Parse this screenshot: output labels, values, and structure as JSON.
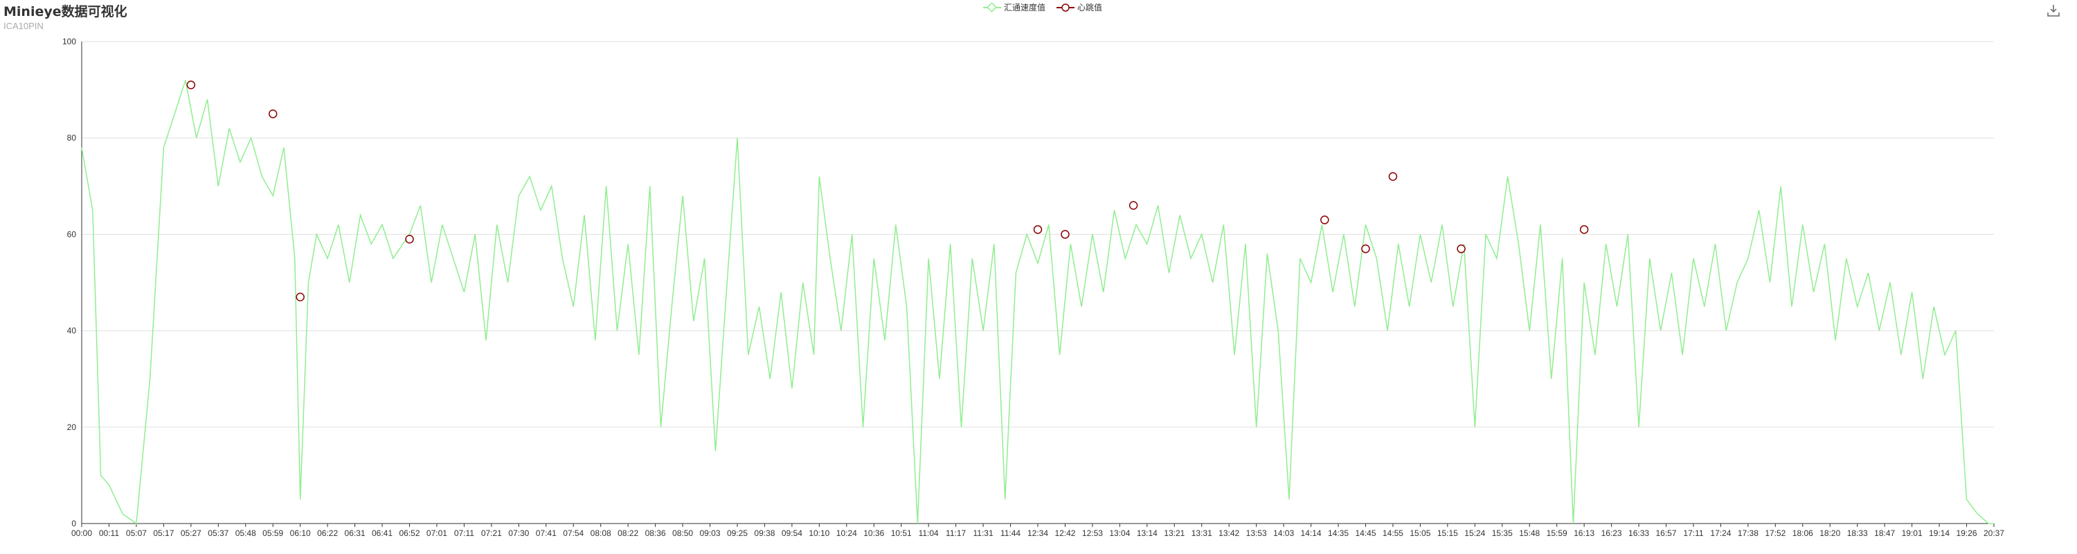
{
  "header": {
    "title": "Minieye数据可视化",
    "subtitle": "ICA10PIN"
  },
  "toolbar": {
    "download_icon": "download-icon"
  },
  "colors": {
    "speed": "#90ee90",
    "heartbeat": "#8b0000",
    "grid": "#e0e0e0",
    "axis": "#333333"
  },
  "chart_data": {
    "type": "line",
    "legend": [
      {
        "name": "汇通速度值",
        "symbol": "diamond",
        "color": "#90ee90"
      },
      {
        "name": "心跳值",
        "symbol": "circle",
        "color": "#8b0000"
      }
    ],
    "legend_placement": "top-center",
    "grid": true,
    "ylim": [
      0,
      100
    ],
    "yticks": [
      0,
      20,
      40,
      60,
      80,
      100
    ],
    "xticks": [
      "00:00",
      "00:11",
      "05:07",
      "05:17",
      "05:27",
      "05:37",
      "05:48",
      "05:59",
      "06:10",
      "06:22",
      "06:31",
      "06:41",
      "06:52",
      "07:01",
      "07:11",
      "07:21",
      "07:30",
      "07:41",
      "07:54",
      "08:08",
      "08:22",
      "08:36",
      "08:50",
      "09:03",
      "09:25",
      "09:38",
      "09:54",
      "10:10",
      "10:24",
      "10:36",
      "10:51",
      "11:04",
      "11:17",
      "11:31",
      "11:44",
      "12:34",
      "12:42",
      "12:53",
      "13:04",
      "13:14",
      "13:21",
      "13:31",
      "13:42",
      "13:53",
      "14:03",
      "14:14",
      "14:35",
      "14:45",
      "14:55",
      "15:05",
      "15:15",
      "15:24",
      "15:35",
      "15:48",
      "15:59",
      "16:13",
      "16:23",
      "16:33",
      "16:57",
      "17:11",
      "17:24",
      "17:38",
      "17:52",
      "18:06",
      "18:20",
      "18:33",
      "18:47",
      "19:01",
      "19:14",
      "19:26",
      "20:37"
    ],
    "series": [
      {
        "name": "汇通速度值",
        "style": "line",
        "points": [
          [
            0,
            78
          ],
          [
            0.4,
            65
          ],
          [
            0.7,
            10
          ],
          [
            1,
            8
          ],
          [
            1.5,
            2
          ],
          [
            2,
            0
          ],
          [
            2.5,
            30
          ],
          [
            3,
            78
          ],
          [
            3.4,
            85
          ],
          [
            3.8,
            92
          ],
          [
            4.2,
            80
          ],
          [
            4.6,
            88
          ],
          [
            5,
            70
          ],
          [
            5.4,
            82
          ],
          [
            5.8,
            75
          ],
          [
            6.2,
            80
          ],
          [
            6.6,
            72
          ],
          [
            7,
            68
          ],
          [
            7.4,
            78
          ],
          [
            7.8,
            55
          ],
          [
            8,
            5
          ],
          [
            8.3,
            50
          ],
          [
            8.6,
            60
          ],
          [
            9,
            55
          ],
          [
            9.4,
            62
          ],
          [
            9.8,
            50
          ],
          [
            10.2,
            64
          ],
          [
            10.6,
            58
          ],
          [
            11,
            62
          ],
          [
            11.4,
            55
          ],
          [
            12,
            60
          ],
          [
            12.4,
            66
          ],
          [
            12.8,
            50
          ],
          [
            13.2,
            62
          ],
          [
            13.6,
            55
          ],
          [
            14,
            48
          ],
          [
            14.4,
            60
          ],
          [
            14.8,
            38
          ],
          [
            15.2,
            62
          ],
          [
            15.6,
            50
          ],
          [
            16,
            68
          ],
          [
            16.4,
            72
          ],
          [
            16.8,
            65
          ],
          [
            17.2,
            70
          ],
          [
            17.6,
            55
          ],
          [
            18,
            45
          ],
          [
            18.4,
            64
          ],
          [
            18.8,
            38
          ],
          [
            19.2,
            70
          ],
          [
            19.6,
            40
          ],
          [
            20,
            58
          ],
          [
            20.4,
            35
          ],
          [
            20.8,
            70
          ],
          [
            21.2,
            20
          ],
          [
            21.6,
            45
          ],
          [
            22,
            68
          ],
          [
            22.4,
            42
          ],
          [
            22.8,
            55
          ],
          [
            23.2,
            15
          ],
          [
            23.6,
            48
          ],
          [
            24,
            80
          ],
          [
            24.4,
            35
          ],
          [
            24.8,
            45
          ],
          [
            25.2,
            30
          ],
          [
            25.6,
            48
          ],
          [
            26,
            28
          ],
          [
            26.4,
            50
          ],
          [
            26.8,
            35
          ],
          [
            27,
            72
          ],
          [
            27.4,
            55
          ],
          [
            27.8,
            40
          ],
          [
            28.2,
            60
          ],
          [
            28.6,
            20
          ],
          [
            29,
            55
          ],
          [
            29.4,
            38
          ],
          [
            29.8,
            62
          ],
          [
            30.2,
            45
          ],
          [
            30.6,
            0
          ],
          [
            31,
            55
          ],
          [
            31.4,
            30
          ],
          [
            31.8,
            58
          ],
          [
            32.2,
            20
          ],
          [
            32.6,
            55
          ],
          [
            33,
            40
          ],
          [
            33.4,
            58
          ],
          [
            33.8,
            5
          ],
          [
            34.2,
            52
          ],
          [
            34.6,
            60
          ],
          [
            35,
            54
          ],
          [
            35.4,
            62
          ],
          [
            35.8,
            35
          ],
          [
            36.2,
            58
          ],
          [
            36.6,
            45
          ],
          [
            37,
            60
          ],
          [
            37.4,
            48
          ],
          [
            37.8,
            65
          ],
          [
            38.2,
            55
          ],
          [
            38.6,
            62
          ],
          [
            39,
            58
          ],
          [
            39.4,
            66
          ],
          [
            39.8,
            52
          ],
          [
            40.2,
            64
          ],
          [
            40.6,
            55
          ],
          [
            41,
            60
          ],
          [
            41.4,
            50
          ],
          [
            41.8,
            62
          ],
          [
            42.2,
            35
          ],
          [
            42.6,
            58
          ],
          [
            43,
            20
          ],
          [
            43.4,
            56
          ],
          [
            43.8,
            40
          ],
          [
            44.2,
            5
          ],
          [
            44.6,
            55
          ],
          [
            45,
            50
          ],
          [
            45.4,
            62
          ],
          [
            45.8,
            48
          ],
          [
            46.2,
            60
          ],
          [
            46.6,
            45
          ],
          [
            47,
            62
          ],
          [
            47.4,
            55
          ],
          [
            47.8,
            40
          ],
          [
            48.2,
            58
          ],
          [
            48.6,
            45
          ],
          [
            49,
            60
          ],
          [
            49.4,
            50
          ],
          [
            49.8,
            62
          ],
          [
            50.2,
            45
          ],
          [
            50.6,
            58
          ],
          [
            51,
            20
          ],
          [
            51.4,
            60
          ],
          [
            51.8,
            55
          ],
          [
            52.2,
            72
          ],
          [
            52.6,
            58
          ],
          [
            53,
            40
          ],
          [
            53.4,
            62
          ],
          [
            53.8,
            30
          ],
          [
            54.2,
            55
          ],
          [
            54.6,
            0
          ],
          [
            55,
            50
          ],
          [
            55.4,
            35
          ],
          [
            55.8,
            58
          ],
          [
            56.2,
            45
          ],
          [
            56.6,
            60
          ],
          [
            57,
            20
          ],
          [
            57.4,
            55
          ],
          [
            57.8,
            40
          ],
          [
            58.2,
            52
          ],
          [
            58.6,
            35
          ],
          [
            59,
            55
          ],
          [
            59.4,
            45
          ],
          [
            59.8,
            58
          ],
          [
            60.2,
            40
          ],
          [
            60.6,
            50
          ],
          [
            61,
            55
          ],
          [
            61.4,
            65
          ],
          [
            61.8,
            50
          ],
          [
            62.2,
            70
          ],
          [
            62.6,
            45
          ],
          [
            63,
            62
          ],
          [
            63.4,
            48
          ],
          [
            63.8,
            58
          ],
          [
            64.2,
            38
          ],
          [
            64.6,
            55
          ],
          [
            65,
            45
          ],
          [
            65.4,
            52
          ],
          [
            65.8,
            40
          ],
          [
            66.2,
            50
          ],
          [
            66.6,
            35
          ],
          [
            67,
            48
          ],
          [
            67.4,
            30
          ],
          [
            67.8,
            45
          ],
          [
            68.2,
            35
          ],
          [
            68.6,
            40
          ],
          [
            69,
            5
          ],
          [
            69.4,
            2
          ],
          [
            69.8,
            0
          ],
          [
            70,
            0
          ]
        ]
      },
      {
        "name": "心跳值",
        "style": "scatter",
        "points": [
          [
            4,
            91
          ],
          [
            7,
            85
          ],
          [
            8,
            47
          ],
          [
            12,
            59
          ],
          [
            35,
            61
          ],
          [
            36,
            60
          ],
          [
            38.5,
            66
          ],
          [
            45.5,
            63
          ],
          [
            47,
            57
          ],
          [
            48,
            72
          ],
          [
            50.5,
            57
          ],
          [
            55,
            61
          ]
        ]
      }
    ]
  }
}
